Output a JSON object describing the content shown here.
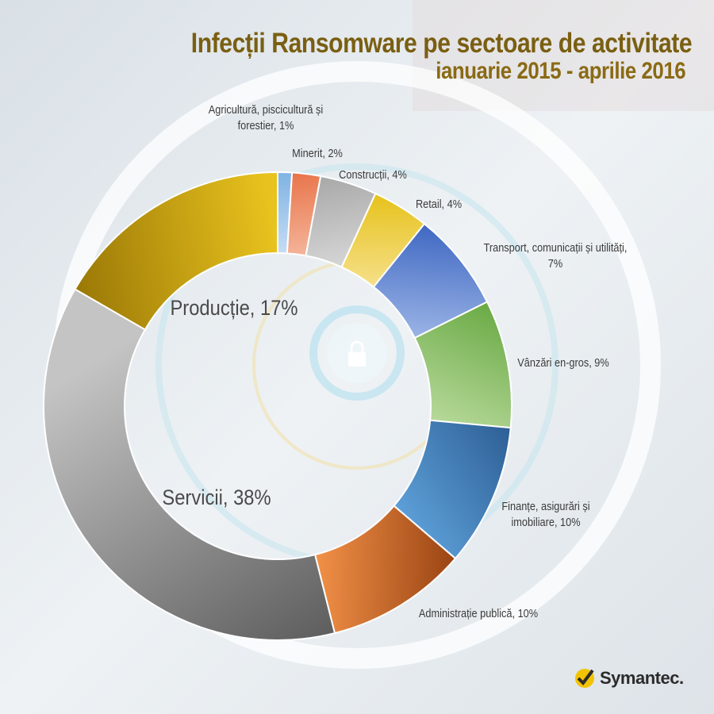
{
  "title": {
    "line1": "Infecții Ransomware pe sectoare de activitate",
    "line2": "ianuarie 2015 - aprilie 2016"
  },
  "brand": "Symantec.",
  "chart_data": {
    "type": "pie",
    "donut": true,
    "title": "Infecții Ransomware pe sectoare de activitate",
    "subtitle": "ianuarie 2015 - aprilie 2016",
    "unit": "%",
    "slices": [
      {
        "label": [
          "Agricultură, piscicultură și",
          "forestier, 1%"
        ],
        "value": 1,
        "color_a": "#7fb2e3",
        "color_b": "#c6ddf3"
      },
      {
        "label": [
          "Minerit, 2%"
        ],
        "value": 2,
        "color_a": "#e8744a",
        "color_b": "#f5b59a"
      },
      {
        "label": [
          "Construcții, 4%"
        ],
        "value": 4,
        "color_a": "#a8a8a8",
        "color_b": "#d6d6d6"
      },
      {
        "label": [
          "Retail, 4%"
        ],
        "value": 4,
        "color_a": "#e6c21c",
        "color_b": "#f6e08a"
      },
      {
        "label": [
          "Transport, comunicații și utilități,",
          "7%"
        ],
        "value": 7,
        "color_a": "#3f68c2",
        "color_b": "#9bb4e6"
      },
      {
        "label": [
          "Vânzări en-gros, 9%"
        ],
        "value": 9,
        "color_a": "#6aaa45",
        "color_b": "#b7d99a"
      },
      {
        "label": [
          "Finanțe, asigurări și",
          "imobiliare, 10%"
        ],
        "value": 10,
        "color_a": "#2d5f95",
        "color_b": "#5d9fd8"
      },
      {
        "label": [
          "Administrație publică, 10%"
        ],
        "value": 10,
        "color_a": "#9a4413",
        "color_b": "#f29148"
      },
      {
        "label": [
          "Servicii, 38%"
        ],
        "value": 38,
        "color_a": "#5e5e5e",
        "color_b": "#c4c4c4"
      },
      {
        "label": [
          "Producție, 17%"
        ],
        "value": 17,
        "color_a": "#9a7806",
        "color_b": "#e8c21e"
      }
    ]
  }
}
